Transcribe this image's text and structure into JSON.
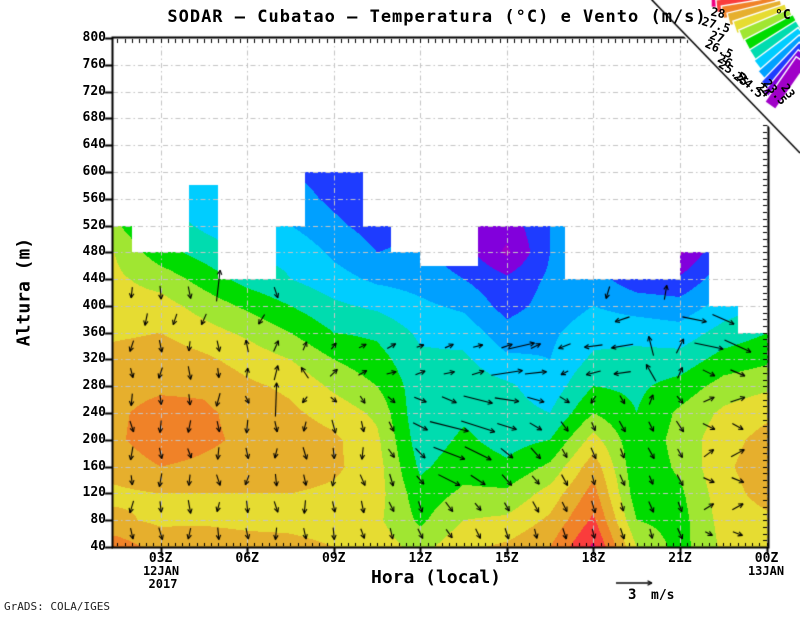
{
  "title": "SODAR — Cubatao — Temperatura (°C) e Vento (m/s)",
  "credit": "GrADS: COLA/IGES",
  "axes": {
    "y_label": "Altura (m)",
    "x_label": "Hora (local)",
    "y_ticks": [
      800,
      760,
      720,
      680,
      640,
      600,
      560,
      520,
      480,
      440,
      400,
      360,
      320,
      280,
      240,
      200,
      160,
      120,
      80,
      40
    ],
    "x_ticks": [
      {
        "label": "03Z",
        "hour": 3
      },
      {
        "label": "06Z",
        "hour": 6
      },
      {
        "label": "09Z",
        "hour": 9
      },
      {
        "label": "12Z",
        "hour": 12
      },
      {
        "label": "15Z",
        "hour": 15
      },
      {
        "label": "18Z",
        "hour": 18
      },
      {
        "label": "21Z",
        "hour": 21
      },
      {
        "label": "00Z",
        "hour": 24
      }
    ],
    "x_start_date": [
      "12JAN",
      "2017"
    ],
    "x_end_date": "13JAN"
  },
  "legend": {
    "unit": "°C",
    "boundary_labels": [
      "28",
      "27.5",
      "27",
      "26.5",
      "26",
      "25.5",
      "25",
      "24.5",
      "24",
      "23.5",
      "23"
    ]
  },
  "wind_scale": {
    "value": "3",
    "unit": "m/s",
    "speed_ms": 3
  },
  "chart_data": {
    "type": "heatmap",
    "title": "SODAR — Cubatao — Temperatura (°C) e Vento (m/s)",
    "xlabel": "Hora (local)",
    "ylabel": "Altura (m)",
    "xlim": [
      1.35,
      24.05
    ],
    "ylim": [
      40,
      800
    ],
    "grid": true,
    "x_hours": [
      1.4,
      3,
      4.5,
      6,
      7.5,
      9,
      10.5,
      12,
      13.5,
      15,
      16.5,
      18,
      19.5,
      21,
      22.5,
      24.05
    ],
    "y_heights_m": [
      40,
      80,
      120,
      160,
      200,
      240,
      280,
      320,
      360,
      400,
      440,
      480,
      520,
      560,
      600
    ],
    "temperature_c": [
      [
        27.3,
        26.6,
        26.4,
        26.7,
        26.9,
        26.9,
        26.8,
        26.7,
        26.4,
        26.2,
        26.1,
        26.0,
        25.6,
        25.0,
        24.6
      ],
      [
        26.8,
        26.4,
        26.5,
        27.0,
        27.3,
        27.2,
        26.9,
        26.8,
        26.5,
        26.2,
        25.8,
        25.2,
        24.8,
        24.4,
        24.0
      ],
      [
        26.9,
        26.4,
        26.5,
        26.9,
        27.1,
        27.1,
        26.9,
        26.6,
        26.2,
        25.8,
        25.3,
        24.8,
        24.4,
        24.2,
        24.0
      ],
      [
        26.8,
        26.3,
        26.5,
        26.8,
        26.9,
        26.8,
        26.6,
        26.3,
        25.9,
        25.4,
        24.8,
        24.4,
        24.1,
        23.9,
        23.7
      ],
      [
        26.7,
        26.3,
        26.5,
        26.8,
        26.8,
        26.6,
        26.4,
        26.0,
        25.5,
        25.0,
        24.5,
        24.4,
        24.0,
        23.7,
        23.5
      ],
      [
        26.5,
        26.2,
        26.4,
        26.6,
        26.6,
        26.3,
        25.9,
        25.5,
        25.0,
        24.6,
        24.2,
        23.9,
        23.6,
        23.4,
        23.3
      ],
      [
        26.3,
        26.1,
        26.2,
        26.2,
        26.1,
        25.9,
        25.5,
        25.2,
        24.9,
        24.4,
        23.9,
        23.5,
        23.3,
        23.2,
        23.1
      ],
      [
        25.8,
        25.4,
        25.2,
        24.9,
        24.7,
        24.6,
        24.7,
        24.6,
        24.4,
        24.1,
        23.8,
        23.6,
        23.5,
        23.4,
        23.3
      ],
      [
        26.4,
        26.0,
        25.6,
        25.3,
        25.1,
        24.9,
        24.8,
        24.6,
        24.3,
        23.9,
        23.5,
        23.2,
        23.0,
        22.9,
        22.9
      ],
      [
        26.6,
        26.1,
        25.6,
        25.1,
        24.8,
        24.7,
        24.6,
        24.1,
        23.7,
        23.3,
        23.1,
        22.4,
        22.7,
        22.8,
        22.8
      ],
      [
        27.0,
        26.6,
        26.2,
        25.6,
        25.0,
        24.5,
        24.2,
        24.0,
        23.9,
        23.7,
        23.6,
        23.5,
        23.5,
        23.5,
        23.5
      ],
      [
        28.1,
        27.6,
        27.2,
        26.8,
        26.2,
        25.5,
        25.0,
        24.6,
        24.3,
        24.0,
        23.7,
        23.6,
        23.5,
        23.5,
        23.5
      ],
      [
        26.0,
        25.5,
        25.2,
        25.1,
        25.1,
        25.0,
        24.9,
        24.7,
        24.3,
        23.8,
        23.2,
        23.1,
        23.0,
        23.0,
        23.0
      ],
      [
        25.3,
        25.3,
        25.4,
        25.6,
        25.7,
        25.6,
        25.2,
        24.7,
        24.2,
        23.7,
        23.1,
        22.4,
        22.3,
        22.3,
        22.3
      ],
      [
        26.1,
        26.2,
        26.3,
        26.4,
        26.3,
        26.1,
        25.7,
        25.2,
        24.7,
        24.2,
        23.8,
        23.5,
        23.3,
        23.2,
        23.1
      ],
      [
        26.2,
        26.4,
        26.7,
        26.8,
        26.7,
        26.4,
        25.9,
        25.4,
        25.0,
        24.6,
        24.2,
        23.9,
        23.7,
        23.6,
        23.5
      ]
    ],
    "echo_top_m_by_hour": [
      520,
      480,
      480,
      580,
      440,
      440,
      520,
      600,
      600,
      520,
      480,
      460,
      460,
      520,
      520,
      520,
      440,
      440,
      440,
      440,
      480,
      400,
      360
    ],
    "band_thresholds_c": [
      22.5,
      23,
      23.5,
      24,
      24.5,
      25,
      25.5,
      26,
      26.5,
      27,
      27.5,
      28
    ],
    "band_colors": [
      "#A000C8",
      "#8200DC",
      "#1E3CFF",
      "#00A0FF",
      "#00CDFF",
      "#00DCAF",
      "#00DC00",
      "#A0E632",
      "#E6DC32",
      "#E6AF2D",
      "#F08228",
      "#FA3C3C",
      "#F00082"
    ],
    "no_data_color": "#ffffff",
    "grid_color": "#c4c4c4",
    "wind_vectors_ms": {
      "hours": [
        2,
        3,
        4,
        5,
        6,
        7,
        8,
        9,
        10,
        11,
        12,
        13,
        14,
        15,
        16,
        17,
        18,
        19,
        20,
        21,
        22,
        23
      ],
      "heights_m": [
        60,
        100,
        140,
        180,
        220,
        260,
        300,
        340
      ],
      "u": [
        [
          0.2,
          -0.3,
          0.1,
          -0.2,
          0.3,
          -0.1,
          0.2,
          -0.3
        ],
        [
          0.3,
          0.1,
          -0.2,
          0.2,
          -0.1,
          0.1,
          -0.3,
          0.2
        ],
        [
          -0.2,
          0.2,
          -0.1,
          0.3,
          -0.2,
          0.1,
          0.2,
          -0.1
        ],
        [
          0.1,
          -0.2,
          0.3,
          -0.1,
          0.2,
          -0.3,
          0.1,
          0.2
        ],
        [
          0.2,
          0.1,
          -0.3,
          0.2,
          -0.1,
          0.3,
          0.1,
          -0.2
        ],
        [
          -0.1,
          0.3,
          0.1,
          -0.2,
          0.2,
          0.1,
          0.3,
          0.4
        ],
        [
          0.2,
          -0.1,
          0.2,
          0.3,
          -0.2,
          -0.4,
          -0.6,
          0.3
        ],
        [
          0.1,
          0.2,
          -0.2,
          0.1,
          0.3,
          0.5,
          0.6,
          0.4
        ],
        [
          0.3,
          0.2,
          0.4,
          -0.1,
          0.2,
          0.4,
          0.7,
          0.6
        ],
        [
          0.2,
          0.4,
          0.3,
          0.5,
          0.4,
          0.6,
          0.8,
          0.7
        ],
        [
          0.4,
          0.3,
          0.6,
          0.8,
          1.2,
          1.0,
          0.8,
          0.6
        ],
        [
          0.5,
          0.6,
          1.8,
          2.6,
          3.2,
          1.2,
          0.9,
          0.7
        ],
        [
          0.4,
          0.5,
          1.2,
          2.2,
          2.8,
          2.4,
          1.0,
          0.8
        ],
        [
          0.3,
          0.4,
          0.8,
          1.0,
          1.6,
          2.0,
          2.6,
          0.9
        ],
        [
          0.2,
          0.5,
          0.6,
          0.8,
          1.0,
          1.4,
          1.8,
          0.8
        ],
        [
          0.3,
          0.4,
          0.5,
          0.4,
          0.6,
          0.8,
          -0.6,
          -1.0
        ],
        [
          0.2,
          0.3,
          0.2,
          0.4,
          0.3,
          -0.4,
          -1.2,
          -1.5
        ],
        [
          0.3,
          0.2,
          0.4,
          0.3,
          0.5,
          0.4,
          -1.4,
          -1.8
        ],
        [
          0.2,
          0.4,
          0.3,
          0.5,
          0.4,
          0.3,
          -0.8,
          -0.4
        ],
        [
          0.4,
          0.3,
          0.5,
          0.4,
          0.6,
          0.5,
          0.4,
          0.6
        ],
        [
          0.6,
          0.8,
          0.9,
          0.8,
          1.0,
          0.9,
          1.0,
          2.4
        ],
        [
          0.8,
          0.9,
          1.0,
          1.1,
          0.9,
          1.2,
          1.2,
          2.2
        ]
      ],
      "v": [
        [
          -0.9,
          -1.0,
          -0.8,
          -1.1,
          -0.9,
          -1.0,
          -0.8,
          -0.9
        ],
        [
          -1.0,
          -0.9,
          -1.1,
          -0.9,
          -1.0,
          -0.8,
          -0.9,
          -1.0
        ],
        [
          -0.9,
          -1.1,
          -0.9,
          -0.8,
          -1.0,
          -0.9,
          -1.1,
          -0.8
        ],
        [
          -1.0,
          -0.8,
          -0.9,
          -1.0,
          -0.9,
          -1.1,
          -0.8,
          -0.9
        ],
        [
          -0.9,
          -1.0,
          -0.8,
          -0.9,
          -1.1,
          -0.6,
          0.8,
          1.0
        ],
        [
          -1.0,
          -0.9,
          -1.0,
          -0.8,
          -0.9,
          2.8,
          1.2,
          0.9
        ],
        [
          -0.9,
          -1.1,
          -0.9,
          -1.0,
          -0.8,
          -0.5,
          0.9,
          0.7
        ],
        [
          -1.0,
          -0.9,
          -1.0,
          -0.9,
          -1.1,
          -0.4,
          0.6,
          0.5
        ],
        [
          -0.8,
          -1.0,
          -0.9,
          -1.0,
          -0.9,
          -0.6,
          0.4,
          0.3
        ],
        [
          -0.9,
          -0.8,
          -1.0,
          -0.7,
          -0.8,
          -0.5,
          0.2,
          0.4
        ],
        [
          -0.8,
          -0.9,
          -0.7,
          -0.8,
          -0.6,
          -0.4,
          0.3,
          0.2
        ],
        [
          -0.7,
          -0.8,
          -0.9,
          -1.0,
          -0.8,
          -0.5,
          0.2,
          0.3
        ],
        [
          -0.8,
          -0.6,
          -0.8,
          -1.1,
          -0.9,
          -0.6,
          0.3,
          0.2
        ],
        [
          -0.9,
          -0.7,
          -0.9,
          -0.8,
          -0.5,
          -0.3,
          0.4,
          0.3
        ],
        [
          -0.8,
          -0.9,
          -0.7,
          -0.9,
          -0.6,
          -0.4,
          0.2,
          0.4
        ],
        [
          -0.9,
          -0.8,
          -0.9,
          -0.7,
          -0.8,
          -0.5,
          -0.3,
          -0.4
        ],
        [
          -0.8,
          -1.0,
          -0.8,
          -0.9,
          -0.7,
          -0.6,
          -0.3,
          -0.2
        ],
        [
          -0.9,
          -0.7,
          -0.9,
          -0.8,
          -0.9,
          -0.7,
          -0.2,
          -0.3
        ],
        [
          -0.8,
          -0.9,
          -0.7,
          -0.9,
          -0.8,
          0.8,
          1.4,
          1.6
        ],
        [
          -0.9,
          -0.8,
          -0.9,
          -0.7,
          -0.9,
          -0.6,
          0.9,
          1.2
        ],
        [
          -0.3,
          0.5,
          -0.4,
          0.6,
          -0.5,
          0.4,
          -0.5,
          -0.5
        ],
        [
          -0.3,
          0.5,
          -0.4,
          0.6,
          -0.5,
          0.4,
          -0.5,
          -1.0
        ]
      ],
      "extra": [
        {
          "t": 2.0,
          "z": 420,
          "u": -0.1,
          "v": -0.9
        },
        {
          "t": 2.5,
          "z": 380,
          "u": -0.2,
          "v": -1.0
        },
        {
          "t": 3.0,
          "z": 420,
          "u": 0.1,
          "v": -1.1
        },
        {
          "t": 3.5,
          "z": 380,
          "u": -0.3,
          "v": -0.9
        },
        {
          "t": 4.0,
          "z": 420,
          "u": 0.2,
          "v": -1.0
        },
        {
          "t": 4.5,
          "z": 380,
          "u": -0.4,
          "v": -0.9
        },
        {
          "t": 5.0,
          "z": 430,
          "u": 0.3,
          "v": 2.6
        },
        {
          "t": 6.5,
          "z": 380,
          "u": -0.5,
          "v": -0.8
        },
        {
          "t": 7.0,
          "z": 420,
          "u": 0.3,
          "v": -0.9
        },
        {
          "t": 15.5,
          "z": 340,
          "u": 2.2,
          "v": 0.5
        },
        {
          "t": 18.5,
          "z": 420,
          "u": -0.3,
          "v": -1.0
        },
        {
          "t": 19.0,
          "z": 380,
          "u": -1.2,
          "v": -0.4
        },
        {
          "t": 20.5,
          "z": 420,
          "u": 0.2,
          "v": 1.2
        },
        {
          "t": 21.5,
          "z": 380,
          "u": 2.0,
          "v": -0.4
        },
        {
          "t": 22.5,
          "z": 380,
          "u": 1.8,
          "v": -0.8
        }
      ]
    }
  }
}
